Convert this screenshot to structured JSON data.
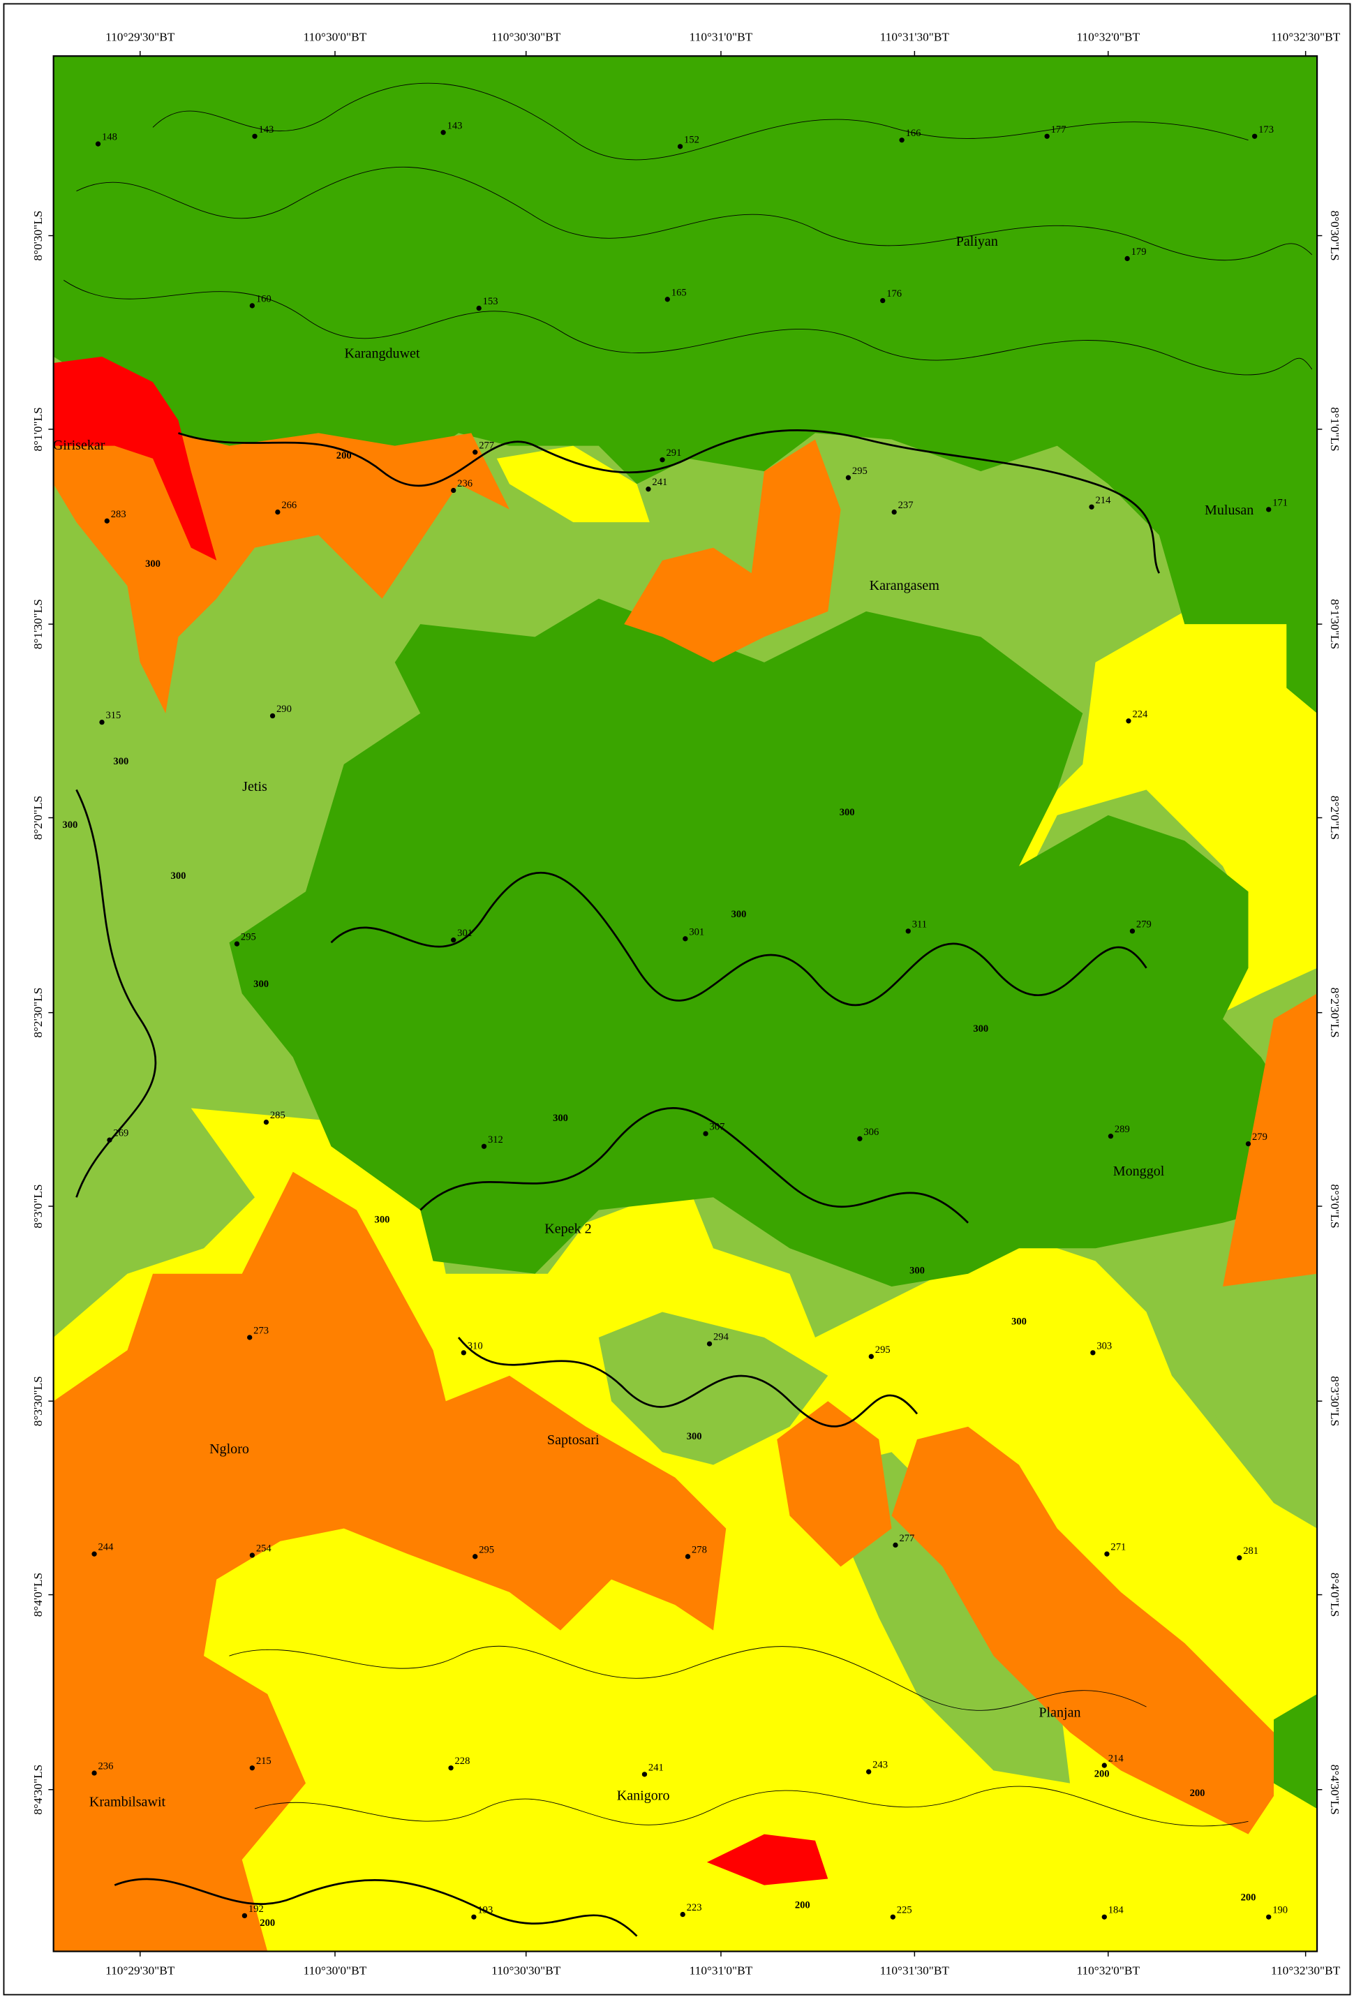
{
  "map": {
    "top_labels": [
      "110°29'30\"BT",
      "110°30'0\"BT",
      "110°30'30\"BT",
      "110°31'0\"BT",
      "110°31'30\"BT",
      "110°32'0\"BT",
      "110°32'30\"BT"
    ],
    "bottom_labels": [
      "110°29'30\"BT",
      "110°30'0\"BT",
      "110°30'30\"BT",
      "110°31'0\"BT",
      "110°31'30\"BT",
      "110°32'0\"BT",
      "110°32'30\"BT"
    ],
    "left_labels": [
      "8°0'30\"LS",
      "8°1'0\"LS",
      "8°1'30\"LS",
      "8°2'0\"LS",
      "8°2'30\"LS",
      "8°3'0\"LS",
      "8°3'30\"LS",
      "8°4'0\"LS",
      "8°4'30\"LS"
    ],
    "right_labels": [
      "8°0'30\"LS",
      "8°1'0\"LS",
      "8°1'30\"LS",
      "8°2'0\"LS",
      "8°2'30\"LS",
      "8°3'0\"LS",
      "8°3'30\"LS",
      "8°4'0\"LS",
      "8°4'30\"LS"
    ],
    "places": [
      "Paliyan",
      "Karangduwet",
      "Girisekar",
      "Mulusan",
      "Karangasem",
      "Jetis",
      "Monggol",
      "Kepek 2",
      "Saptosari",
      "Ngloro",
      "Planjan",
      "Kanigoro",
      "Krambilsawit"
    ],
    "spot_heights": [
      148,
      143,
      143,
      152,
      166,
      177,
      173,
      179,
      160,
      153,
      165,
      176,
      236,
      241,
      237,
      214,
      171,
      283,
      266,
      277,
      291,
      295,
      224,
      315,
      290,
      295,
      301,
      301,
      311,
      279,
      269,
      285,
      312,
      307,
      306,
      289,
      279,
      273,
      310,
      294,
      295,
      303,
      244,
      254,
      295,
      278,
      277,
      271,
      281,
      236,
      215,
      228,
      241,
      243,
      214,
      192,
      193,
      223,
      225,
      184,
      190
    ],
    "contour_labels": [
      200,
      300,
      300,
      300,
      300,
      300,
      300,
      300,
      300,
      300,
      300,
      300,
      300,
      300,
      200,
      200,
      200,
      200,
      200
    ]
  }
}
